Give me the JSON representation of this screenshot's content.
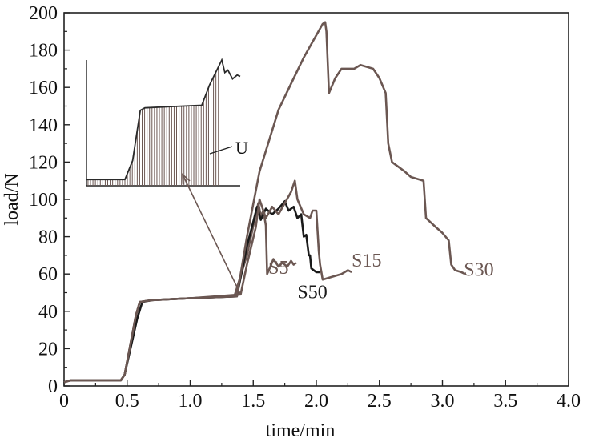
{
  "chart_data": {
    "type": "line",
    "xlabel": "time/min",
    "ylabel": "load/N",
    "xlim": [
      0,
      4.0
    ],
    "ylim": [
      0,
      200
    ],
    "x_ticks": [
      "0",
      "0.5",
      "1.0",
      "1.5",
      "2.0",
      "2.5",
      "3.0",
      "3.5",
      "4.0"
    ],
    "y_ticks": [
      "0",
      "20",
      "40",
      "60",
      "80",
      "100",
      "120",
      "140",
      "160",
      "180",
      "200"
    ],
    "grid": false,
    "legend": "none",
    "series": [
      {
        "name": "S5",
        "color": "#6b5752",
        "label_pos": [
          1.62,
          60
        ],
        "points": [
          [
            0,
            2
          ],
          [
            0.05,
            3
          ],
          [
            0.45,
            3
          ],
          [
            0.48,
            6
          ],
          [
            0.57,
            38
          ],
          [
            0.6,
            45
          ],
          [
            0.7,
            46
          ],
          [
            1.0,
            47
          ],
          [
            1.35,
            48
          ],
          [
            1.45,
            70
          ],
          [
            1.52,
            92
          ],
          [
            1.54,
            98
          ],
          [
            1.56,
            91
          ],
          [
            1.58,
            94
          ],
          [
            1.6,
            86
          ],
          [
            1.61,
            60
          ],
          [
            1.63,
            63
          ],
          [
            1.66,
            68
          ],
          [
            1.7,
            64
          ],
          [
            1.73,
            66
          ],
          [
            1.77,
            64
          ],
          [
            1.8,
            67
          ],
          [
            1.82,
            65
          ],
          [
            1.84,
            66
          ]
        ]
      },
      {
        "name": "S50",
        "color": "#1a1a1a",
        "label_pos": [
          1.85,
          47
        ],
        "points": [
          [
            0,
            2
          ],
          [
            0.05,
            3
          ],
          [
            0.45,
            3
          ],
          [
            0.48,
            6
          ],
          [
            0.58,
            36
          ],
          [
            0.62,
            45
          ],
          [
            0.7,
            46
          ],
          [
            1.0,
            47
          ],
          [
            1.37,
            48
          ],
          [
            1.45,
            75
          ],
          [
            1.5,
            88
          ],
          [
            1.53,
            96
          ],
          [
            1.56,
            89
          ],
          [
            1.6,
            95
          ],
          [
            1.65,
            92
          ],
          [
            1.7,
            95
          ],
          [
            1.75,
            99
          ],
          [
            1.78,
            94
          ],
          [
            1.82,
            96
          ],
          [
            1.85,
            90
          ],
          [
            1.88,
            92
          ],
          [
            1.9,
            80
          ],
          [
            1.92,
            81
          ],
          [
            1.94,
            70
          ],
          [
            1.95,
            70
          ],
          [
            1.96,
            63
          ],
          [
            2.0,
            61
          ],
          [
            2.03,
            61
          ]
        ]
      },
      {
        "name": "S15",
        "color": "#6b5752",
        "label_pos": [
          2.28,
          64
        ],
        "points": [
          [
            0,
            2
          ],
          [
            0.05,
            3
          ],
          [
            0.45,
            3
          ],
          [
            0.48,
            6
          ],
          [
            0.57,
            38
          ],
          [
            0.6,
            45
          ],
          [
            0.7,
            46
          ],
          [
            1.0,
            47
          ],
          [
            1.4,
            49
          ],
          [
            1.45,
            65
          ],
          [
            1.52,
            85
          ],
          [
            1.55,
            100
          ],
          [
            1.6,
            90
          ],
          [
            1.65,
            96
          ],
          [
            1.7,
            92
          ],
          [
            1.75,
            98
          ],
          [
            1.8,
            104
          ],
          [
            1.83,
            110
          ],
          [
            1.85,
            100
          ],
          [
            1.9,
            92
          ],
          [
            1.95,
            90
          ],
          [
            1.97,
            94
          ],
          [
            2.0,
            94
          ],
          [
            2.02,
            72
          ],
          [
            2.03,
            65
          ],
          [
            2.05,
            57
          ],
          [
            2.1,
            58
          ],
          [
            2.2,
            60
          ],
          [
            2.25,
            62
          ],
          [
            2.28,
            61
          ]
        ]
      },
      {
        "name": "S30",
        "color": "#6b5752",
        "label_pos": [
          3.17,
          59
        ],
        "points": [
          [
            0,
            2
          ],
          [
            0.05,
            3
          ],
          [
            0.45,
            3
          ],
          [
            0.48,
            6
          ],
          [
            0.57,
            38
          ],
          [
            0.6,
            45
          ],
          [
            0.7,
            46
          ],
          [
            1.0,
            47
          ],
          [
            1.37,
            48
          ],
          [
            1.45,
            80
          ],
          [
            1.55,
            115
          ],
          [
            1.7,
            148
          ],
          [
            1.8,
            162
          ],
          [
            1.9,
            176
          ],
          [
            2.0,
            188
          ],
          [
            2.05,
            194
          ],
          [
            2.07,
            195
          ],
          [
            2.08,
            190
          ],
          [
            2.1,
            157
          ],
          [
            2.15,
            165
          ],
          [
            2.2,
            170
          ],
          [
            2.3,
            170
          ],
          [
            2.35,
            172
          ],
          [
            2.45,
            170
          ],
          [
            2.5,
            165
          ],
          [
            2.55,
            157
          ],
          [
            2.57,
            130
          ],
          [
            2.6,
            120
          ],
          [
            2.7,
            115
          ],
          [
            2.75,
            112
          ],
          [
            2.85,
            110
          ],
          [
            2.87,
            90
          ],
          [
            2.95,
            85
          ],
          [
            3.0,
            82
          ],
          [
            3.05,
            78
          ],
          [
            3.07,
            65
          ],
          [
            3.1,
            62
          ],
          [
            3.15,
            61
          ],
          [
            3.18,
            60
          ]
        ]
      }
    ],
    "inset": {
      "label": "U",
      "color": "#6b5752",
      "connector_to": [
        1.4,
        49
      ],
      "curve": [
        [
          0,
          0.05
        ],
        [
          0.08,
          0.05
        ],
        [
          0.25,
          0.05
        ],
        [
          0.3,
          0.2
        ],
        [
          0.35,
          0.6
        ],
        [
          0.38,
          0.62
        ],
        [
          0.55,
          0.63
        ],
        [
          0.75,
          0.64
        ],
        [
          0.8,
          0.8
        ],
        [
          0.88,
          1.0
        ],
        [
          0.9,
          0.9
        ],
        [
          0.92,
          0.92
        ],
        [
          0.95,
          0.85
        ],
        [
          0.98,
          0.88
        ],
        [
          1.0,
          0.87
        ]
      ],
      "fill_end": 0.86
    }
  }
}
